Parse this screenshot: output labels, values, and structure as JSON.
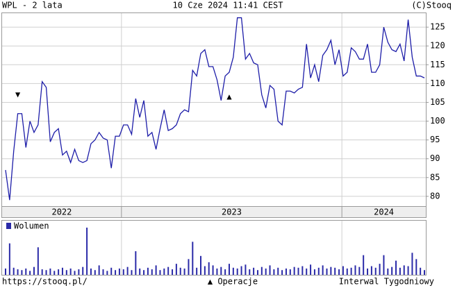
{
  "chart_data": {
    "type": "line",
    "title": "WPL - 2 lata",
    "subtitle": "10 Cze 2024 11:41 CEST",
    "source": "(C)Stooq",
    "footer_left": "https://stooq.pl/",
    "footer_center": "▲ Operacje",
    "footer_right": "Interwal Tygodniowy",
    "volume_label": "Wolumen",
    "color": "#1c1ca8",
    "volume_color": "#2a2aa8",
    "grid": true,
    "ylim": [
      77.4,
      128.9
    ],
    "yticks": [
      80,
      85,
      90,
      95,
      100,
      105,
      110,
      115,
      120,
      125
    ],
    "xlim": [
      0,
      103
    ],
    "xticks": [
      28.5,
      82.7
    ],
    "year_labels": [
      "2022",
      "2023",
      "2024"
    ],
    "values": [
      87,
      79,
      92,
      102,
      102,
      93,
      100,
      97,
      99,
      110.5,
      109,
      94.5,
      97,
      98,
      91,
      92,
      89,
      92.5,
      89.5,
      89,
      89.5,
      94,
      95,
      97,
      95.5,
      95,
      87.5,
      96,
      96,
      99,
      99,
      96.5,
      106,
      101,
      105.5,
      96,
      97,
      92.5,
      98,
      103,
      97.5,
      98,
      99,
      102,
      103,
      102.5,
      113.5,
      112,
      118,
      119,
      114.5,
      114.5,
      111,
      105.5,
      112,
      113,
      117,
      127.5,
      127.5,
      116.5,
      118,
      115.5,
      115,
      107,
      103.5,
      109.5,
      108.5,
      100,
      99,
      108,
      108,
      107.5,
      108.5,
      109,
      120.5,
      111.5,
      115,
      110.5,
      117.5,
      119,
      121.5,
      115,
      119,
      112,
      113,
      119.5,
      118.5,
      116.5,
      116.5,
      120.5,
      113,
      113,
      115,
      125,
      121,
      119,
      118.5,
      120.5,
      116,
      127,
      117,
      112,
      112,
      111.5
    ],
    "volume": [
      8,
      40,
      9,
      7,
      6,
      8,
      5,
      10,
      35,
      7,
      6,
      8,
      5,
      7,
      9,
      6,
      8,
      5,
      7,
      10,
      60,
      8,
      6,
      12,
      7,
      5,
      9,
      6,
      8,
      7,
      10,
      6,
      30,
      8,
      6,
      9,
      7,
      12,
      6,
      8,
      10,
      7,
      14,
      9,
      8,
      20,
      42,
      9,
      24,
      11,
      16,
      12,
      8,
      10,
      7,
      14,
      9,
      8,
      11,
      13,
      7,
      9,
      6,
      10,
      8,
      12,
      7,
      9,
      6,
      8,
      7,
      10,
      9,
      11,
      8,
      13,
      7,
      9,
      12,
      8,
      10,
      9,
      7,
      11,
      8,
      9,
      12,
      10,
      25,
      8,
      11,
      9,
      14,
      25,
      8,
      10,
      18,
      9,
      12,
      11,
      28,
      20,
      9,
      6
    ],
    "operations": [
      {
        "index": 3,
        "symbol": "▼",
        "value": 107
      },
      {
        "index": 55,
        "symbol": "▲",
        "value": 106.5
      }
    ]
  }
}
